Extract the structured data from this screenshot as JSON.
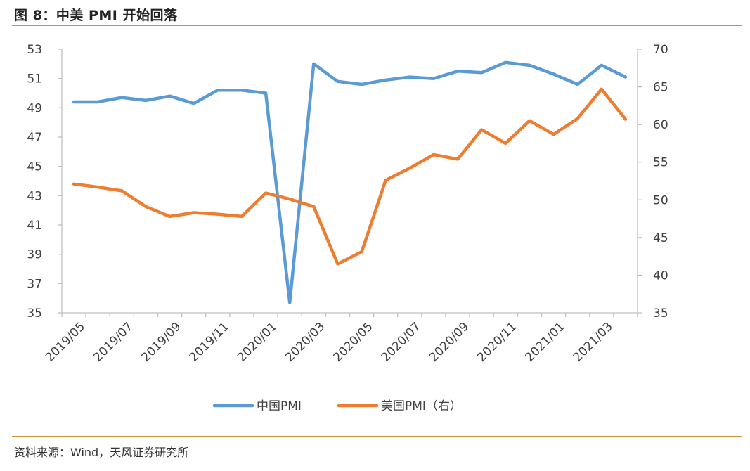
{
  "figure": {
    "title": "图 8：中美 PMI 开始回落",
    "source": "资料来源：Wind，天风证券研究所"
  },
  "chart_data": {
    "type": "line",
    "x": [
      "2019/05",
      "2019/06",
      "2019/07",
      "2019/08",
      "2019/09",
      "2019/10",
      "2019/11",
      "2019/12",
      "2020/01",
      "2020/02",
      "2020/03",
      "2020/04",
      "2020/05",
      "2020/06",
      "2020/07",
      "2020/08",
      "2020/09",
      "2020/10",
      "2020/11",
      "2020/12",
      "2021/01",
      "2021/02",
      "2021/03",
      "2021/04"
    ],
    "x_tick_labels": [
      "2019/05",
      "2019/07",
      "2019/09",
      "2019/11",
      "2020/01",
      "2020/03",
      "2020/05",
      "2020/07",
      "2020/09",
      "2020/11",
      "2021/01",
      "2021/03"
    ],
    "series": [
      {
        "name": "中国PMI",
        "axis": "left",
        "color": "#5b9bd5",
        "values": [
          49.4,
          49.4,
          49.7,
          49.5,
          49.8,
          49.3,
          50.2,
          50.2,
          50.0,
          35.7,
          52.0,
          50.8,
          50.6,
          50.9,
          51.1,
          51.0,
          51.5,
          51.4,
          52.1,
          51.9,
          51.3,
          50.6,
          51.9,
          51.1
        ]
      },
      {
        "name": "美国PMI（右）",
        "axis": "right",
        "color": "#ed7d31",
        "values": [
          52.1,
          51.7,
          51.2,
          49.1,
          47.8,
          48.3,
          48.1,
          47.8,
          50.9,
          50.1,
          49.1,
          41.5,
          43.1,
          52.6,
          54.2,
          56.0,
          55.4,
          59.3,
          57.5,
          60.5,
          58.7,
          60.8,
          64.7,
          60.7
        ]
      }
    ],
    "y_left": {
      "min": 35,
      "max": 53,
      "ticks": [
        35,
        37,
        39,
        41,
        43,
        45,
        47,
        49,
        51,
        53
      ]
    },
    "y_right": {
      "min": 35,
      "max": 70,
      "ticks": [
        35,
        40,
        45,
        50,
        55,
        60,
        65,
        70
      ]
    },
    "grid": false,
    "legend_position": "bottom"
  }
}
